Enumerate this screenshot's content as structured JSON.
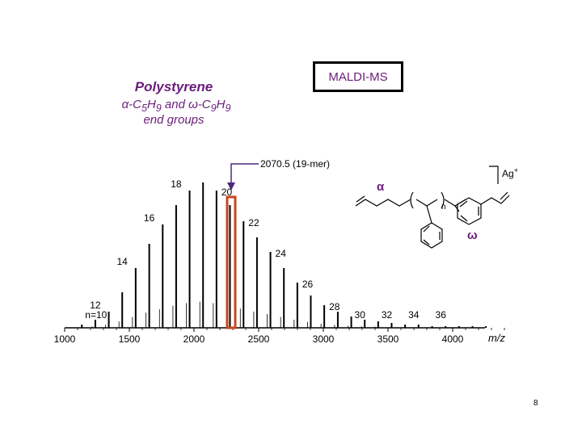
{
  "slide": {
    "badge": "MALDI-MS",
    "title": "Polystyrene",
    "end_groups_line1_alpha": "α",
    "end_groups_line1_a": "-C",
    "end_groups_line1_a_sub": "5",
    "end_groups_line1_b": "H",
    "end_groups_line1_b_sub": "9",
    "end_groups_line1_c": " and ",
    "end_groups_line1_omega": "ω",
    "end_groups_line1_d": "-C",
    "end_groups_line1_d_sub": "9",
    "end_groups_line1_e": "H",
    "end_groups_line1_e_sub": "9",
    "end_groups_line2": "end groups",
    "page_number": "8"
  },
  "structure": {
    "alpha_label": "α",
    "omega_label": "ω",
    "repeat_n": "n",
    "ion": "Ag",
    "ion_charge": "+"
  },
  "colors": {
    "purple": "#6a1f7a",
    "highlight_box": "#c8461e",
    "peaks": "#000000"
  },
  "chart_data": {
    "type": "bar",
    "title": "",
    "xlabel": "m/z",
    "ylabel": "",
    "xlim": [
      1000,
      4500
    ],
    "x_ticks": [
      1000,
      1500,
      2000,
      2500,
      3000,
      3500,
      4000
    ],
    "x_ticks_labels": [
      "1000",
      "1500",
      "2000",
      "2500",
      "3000",
      "3500",
      "4000"
    ],
    "annotation": {
      "text": "2070.5 (19-mer)",
      "x": 2070.5
    },
    "series": [
      {
        "x": [
          1133,
          1237,
          1341,
          1445,
          1549,
          1654,
          1758,
          1862,
          1966,
          2070,
          2174,
          2278,
          2383,
          2487,
          2591,
          2695,
          2799,
          2903,
          3007,
          3112,
          3216,
          3320,
          3424,
          3528,
          3632,
          3736,
          3841,
          3945,
          4049,
          4153,
          4257
        ],
        "values": [
          2,
          5,
          10,
          22,
          37,
          52,
          64,
          76,
          85,
          90,
          85,
          76,
          66,
          56,
          47,
          37,
          28,
          20,
          14,
          10,
          7,
          5,
          4,
          3,
          2,
          2,
          1,
          1,
          1,
          1,
          1
        ]
      }
    ],
    "peak_labels": [
      {
        "n": "n=10",
        "x": 1133
      },
      {
        "n": "12",
        "x": 1341
      },
      {
        "n": "14",
        "x": 1549
      },
      {
        "n": "16",
        "x": 1758
      },
      {
        "n": "18",
        "x": 1966
      },
      {
        "n": "20",
        "x": 2174
      },
      {
        "n": "22",
        "x": 2383
      },
      {
        "n": "24",
        "x": 2591
      },
      {
        "n": "26",
        "x": 2799
      },
      {
        "n": "28",
        "x": 3007
      },
      {
        "n": "30",
        "x": 3216
      },
      {
        "n": "32",
        "x": 3424
      },
      {
        "n": "34",
        "x": 3632
      },
      {
        "n": "36",
        "x": 3841
      }
    ]
  }
}
